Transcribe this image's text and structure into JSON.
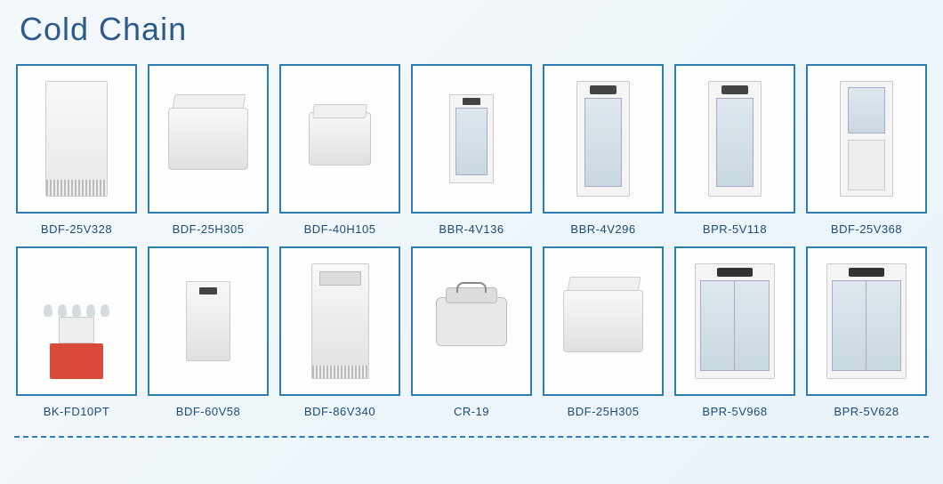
{
  "title": "Cold Chain",
  "colors": {
    "title_color": "#2b5a8c",
    "border_color": "#2b7fb5",
    "label_color": "#1a4d7a",
    "background_start": "#f5f9fc",
    "background_end": "#e8f2f8"
  },
  "products": [
    {
      "model": "BDF-25V328",
      "shape": "upright"
    },
    {
      "model": "BDF-25H305",
      "shape": "chest open"
    },
    {
      "model": "BDF-40H105",
      "shape": "chest small"
    },
    {
      "model": "BBR-4V136",
      "shape": "small-glass"
    },
    {
      "model": "BBR-4V296",
      "shape": "glass-door"
    },
    {
      "model": "BPR-5V118",
      "shape": "glass-door"
    },
    {
      "model": "BDF-25V368",
      "shape": "stacked"
    },
    {
      "model": "BK-FD10PT",
      "shape": "freezedryer"
    },
    {
      "model": "BDF-60V58",
      "shape": "small-upright"
    },
    {
      "model": "BDF-86V340",
      "shape": "tall-upright"
    },
    {
      "model": "CR-19",
      "shape": "cooler"
    },
    {
      "model": "BDF-25H305",
      "shape": "chest open"
    },
    {
      "model": "BPR-5V968",
      "shape": "double-door"
    },
    {
      "model": "BPR-5V628",
      "shape": "double-door"
    }
  ]
}
